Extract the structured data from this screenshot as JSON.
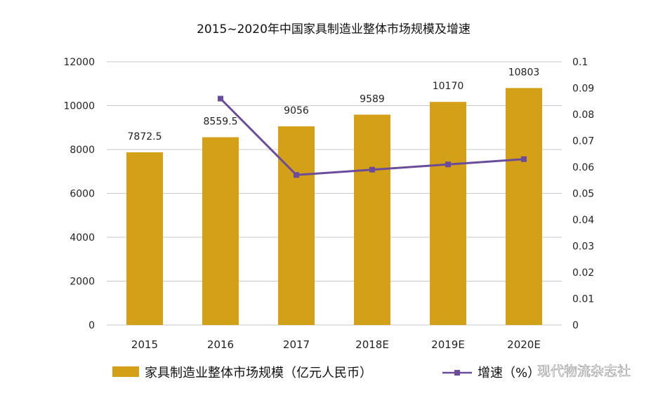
{
  "chart_data": {
    "type": "bar+line",
    "title": "2015~2020年中国家具制造业整体市场规模及增速",
    "categories": [
      "2015",
      "2016",
      "2017",
      "2018E",
      "2019E",
      "2020E"
    ],
    "series": [
      {
        "name": "家具制造业整体市场规模（亿元人民币）",
        "type": "bar",
        "axis": "left",
        "color": "#D4A017",
        "values": [
          7872.5,
          8559.5,
          9056,
          9589,
          10170,
          10803
        ],
        "labels": [
          "7872.5",
          "8559.5",
          "9056",
          "9589",
          "10170",
          "10803"
        ]
      },
      {
        "name": "增速（%）",
        "type": "line",
        "axis": "right",
        "color": "#6B4C9A",
        "values": [
          null,
          0.086,
          0.057,
          0.059,
          0.061,
          0.063
        ]
      }
    ],
    "left_axis": {
      "ylim": [
        0,
        12000
      ],
      "ticks": [
        "0",
        "2000",
        "4000",
        "6000",
        "8000",
        "10000",
        "12000"
      ]
    },
    "right_axis": {
      "ylim": [
        0,
        0.1
      ],
      "ticks": [
        "0",
        "0.01",
        "0.02",
        "0.03",
        "0.04",
        "0.05",
        "0.06",
        "0.07",
        "0.08",
        "0.09",
        "0.1"
      ]
    },
    "grid": true,
    "legend": "bottom"
  },
  "watermark": "现代物流杂志社"
}
